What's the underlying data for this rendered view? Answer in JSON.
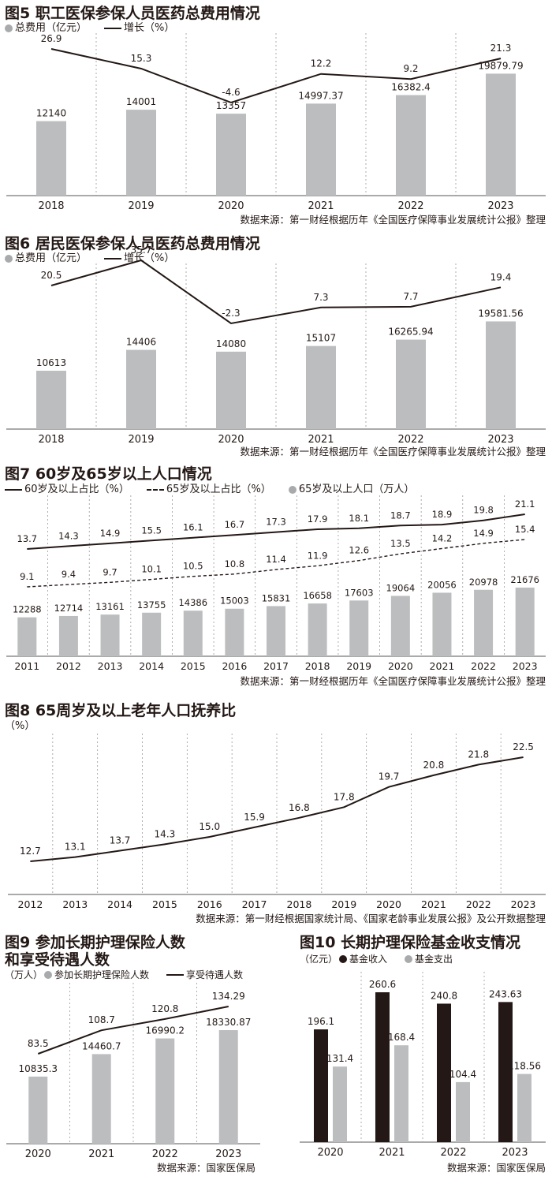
{
  "colors": {
    "bar": "#bcbdbf",
    "dark": "#231815",
    "grid": "#999999"
  },
  "chart_data": [
    {
      "id": "fig5",
      "type": "bar",
      "title": "图5 职工医保参保人员医药总费用情况",
      "legend": [
        "总费用（亿元）",
        "增长（%）"
      ],
      "categories": [
        "2018",
        "2019",
        "2020",
        "2021",
        "2022",
        "2023"
      ],
      "series": [
        {
          "name": "总费用（亿元）",
          "kind": "bar",
          "values": [
            12140,
            14001,
            13357,
            14997.37,
            16382.4,
            19879.79
          ],
          "labels": [
            "12140",
            "14001",
            "13357",
            "14997.37",
            "16382.4",
            "19879.79"
          ]
        },
        {
          "name": "增长（%）",
          "kind": "line",
          "values": [
            26.9,
            15.3,
            -4.6,
            12.2,
            9.2,
            21.3
          ],
          "labels": [
            "26.9",
            "15.3",
            "-4.6",
            "12.2",
            "9.2",
            "21.3"
          ]
        }
      ],
      "source": "数据来源：第一财经根据历年《全国医疗保障事业发展统计公报》整理"
    },
    {
      "id": "fig6",
      "type": "bar",
      "title": "图6 居民医保参保人员医药总费用情况",
      "legend": [
        "总费用（亿元）",
        "增长（%）"
      ],
      "categories": [
        "2018",
        "2019",
        "2020",
        "2021",
        "2022",
        "2023"
      ],
      "series": [
        {
          "name": "总费用（亿元）",
          "kind": "bar",
          "values": [
            10613,
            14406,
            14080,
            15107,
            16265.94,
            19581.56
          ],
          "labels": [
            "10613",
            "14406",
            "14080",
            "15107",
            "16265.94",
            "19581.56"
          ]
        },
        {
          "name": "增长（%）",
          "kind": "line",
          "values": [
            20.5,
            35.7,
            -2.3,
            7.3,
            7.7,
            19.4
          ],
          "labels": [
            "20.5",
            "35.7",
            "-2.3",
            "7.3",
            "7.7",
            "19.4"
          ]
        }
      ],
      "source": "数据来源：第一财经根据历年《全国医疗保障事业发展统计公报》整理"
    },
    {
      "id": "fig7",
      "type": "bar",
      "title": "图7 60岁及65岁以上人口情况",
      "legend": [
        "60岁及以上占比（%）",
        "65岁及以上占比（%）",
        "65岁及以上人口（万人）"
      ],
      "categories": [
        "2011",
        "2012",
        "2013",
        "2014",
        "2015",
        "2016",
        "2017",
        "2018",
        "2019",
        "2020",
        "2021",
        "2022",
        "2023"
      ],
      "series": [
        {
          "name": "60岁及以上占比（%）",
          "kind": "line",
          "values": [
            13.7,
            14.3,
            14.9,
            15.5,
            16.1,
            16.7,
            17.3,
            17.9,
            18.1,
            18.7,
            18.9,
            19.8,
            21.1
          ],
          "labels": [
            "13.7",
            "14.3",
            "14.9",
            "15.5",
            "16.1",
            "16.7",
            "17.3",
            "17.9",
            "18.1",
            "18.7",
            "18.9",
            "19.8",
            "21.1"
          ]
        },
        {
          "name": "65岁及以上占比（%）",
          "kind": "dashed",
          "values": [
            9.1,
            9.4,
            9.7,
            10.1,
            10.5,
            10.8,
            11.4,
            11.9,
            12.6,
            13.5,
            14.2,
            14.9,
            15.4
          ],
          "labels": [
            "9.1",
            "9.4",
            "9.7",
            "10.1",
            "10.5",
            "10.8",
            "11.4",
            "11.9",
            "12.6",
            "13.5",
            "14.2",
            "14.9",
            "15.4"
          ]
        },
        {
          "name": "65岁及以上人口（万人）",
          "kind": "bar",
          "values": [
            12288,
            12714,
            13161,
            13755,
            14386,
            15003,
            15831,
            16658,
            17603,
            19064,
            20056,
            20978,
            21676
          ],
          "labels": [
            "12288",
            "12714",
            "13161",
            "13755",
            "14386",
            "15003",
            "15831",
            "16658",
            "17603",
            "19064",
            "20056",
            "20978",
            "21676"
          ]
        }
      ],
      "source": "数据来源：第一财经根据历年《全国医疗保障事业发展统计公报》整理"
    },
    {
      "id": "fig8",
      "type": "line",
      "title": "图8 65周岁及以上老年人口抚养比",
      "unit": "（%）",
      "categories": [
        "2012",
        "2013",
        "2014",
        "2015",
        "2016",
        "2017",
        "2018",
        "2019",
        "2020",
        "2021",
        "2022",
        "2023"
      ],
      "series": [
        {
          "kind": "line",
          "values": [
            12.7,
            13.1,
            13.7,
            14.3,
            15.0,
            15.9,
            16.8,
            17.8,
            19.7,
            20.8,
            21.8,
            22.5
          ],
          "labels": [
            "12.7",
            "13.1",
            "13.7",
            "14.3",
            "15.0",
            "15.9",
            "16.8",
            "17.8",
            "19.7",
            "20.8",
            "21.8",
            "22.5"
          ]
        }
      ],
      "source": "数据来源：第一财经根据国家统计局、《国家老龄事业发展公报》及公开数据整理"
    },
    {
      "id": "fig9",
      "type": "bar",
      "title1": "图9 参加长期护理保险人数",
      "title2": "和享受待遇人数",
      "unit": "（万人）",
      "legend": [
        "参加长期护理保险人数",
        "享受待遇人数"
      ],
      "categories": [
        "2020",
        "2021",
        "2022",
        "2023"
      ],
      "series": [
        {
          "name": "参加长期护理保险人数",
          "kind": "bar",
          "values": [
            10835.3,
            14460.7,
            16990.2,
            18330.87
          ],
          "labels": [
            "10835.3",
            "14460.7",
            "16990.2",
            "18330.87"
          ]
        },
        {
          "name": "享受待遇人数",
          "kind": "line",
          "values": [
            83.5,
            108.7,
            120.8,
            134.29
          ],
          "labels": [
            "83.5",
            "108.7",
            "120.8",
            "134.29"
          ]
        }
      ],
      "source": "数据来源：国家医保局"
    },
    {
      "id": "fig10",
      "type": "bar",
      "title": "图10 长期护理保险基金收支情况",
      "unit": "（亿元）",
      "legend": [
        "基金收入",
        "基金支出"
      ],
      "categories": [
        "2020",
        "2021",
        "2022",
        "2023"
      ],
      "series": [
        {
          "name": "基金收入",
          "kind": "bar",
          "values": [
            196.1,
            260.6,
            240.8,
            243.63
          ],
          "labels": [
            "196.1",
            "260.6",
            "240.8",
            "243.63"
          ]
        },
        {
          "name": "基金支出",
          "kind": "bar",
          "values": [
            131.4,
            168.4,
            104.4,
            118.56
          ],
          "labels": [
            "131.4",
            "168.4",
            "104.4",
            "118.56"
          ]
        }
      ],
      "source": "数据来源：国家医保局"
    }
  ]
}
